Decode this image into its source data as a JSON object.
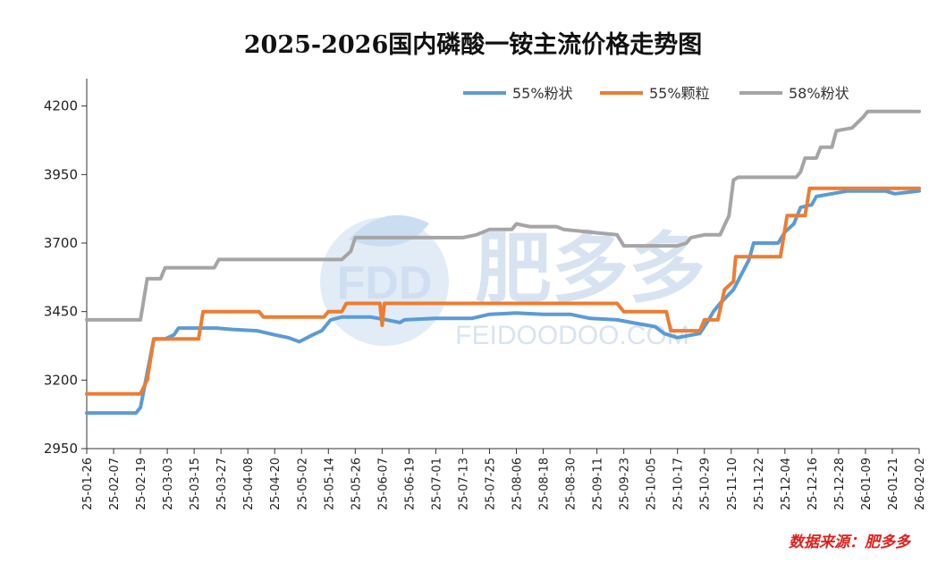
{
  "title": "2025-2026国内磷酸一铵主流价格走势图",
  "source": "数据来源：肥多多",
  "watermark": {
    "logo": "FDD",
    "name": "肥多多",
    "url": "FEIDOODOO.COM"
  },
  "colors": {
    "series1": "#5b9bd5",
    "series2": "#ed7d31",
    "series3": "#a5a5a5",
    "source": "#e0201c"
  },
  "chart_data": {
    "type": "line",
    "title": "2025-2026国内磷酸一铵主流价格走势图",
    "ylim": [
      2950,
      4300
    ],
    "yticks": [
      2950,
      3200,
      3450,
      3700,
      3950,
      4200
    ],
    "x_dates": [
      "25-01-26",
      "25-02-07",
      "25-02-19",
      "25-03-03",
      "25-03-15",
      "25-03-27",
      "25-04-08",
      "25-04-20",
      "25-05-02",
      "25-05-14",
      "25-05-26",
      "25-06-07",
      "25-06-19",
      "25-07-01",
      "25-07-13",
      "25-07-25",
      "25-08-06",
      "25-08-18",
      "25-08-30",
      "25-09-11",
      "25-09-23",
      "25-10-05",
      "25-10-17",
      "25-10-29",
      "25-11-10",
      "25-11-22",
      "25-12-04",
      "25-12-16",
      "25-12-28",
      "26-01-09",
      "26-01-21",
      "26-02-02"
    ],
    "legend_position": "top-right",
    "grid": false,
    "series": [
      {
        "name": "55%粉状",
        "color": "#5b9bd5",
        "points": [
          [
            "25-01-26",
            3080
          ],
          [
            "25-02-17",
            3080
          ],
          [
            "25-02-19",
            3100
          ],
          [
            "25-02-24",
            3310
          ],
          [
            "25-02-25",
            3350
          ],
          [
            "25-03-02",
            3350
          ],
          [
            "25-03-06",
            3365
          ],
          [
            "25-03-08",
            3390
          ],
          [
            "25-03-25",
            3390
          ],
          [
            "25-04-01",
            3385
          ],
          [
            "25-04-12",
            3380
          ],
          [
            "25-04-20",
            3365
          ],
          [
            "25-04-26",
            3355
          ],
          [
            "25-05-01",
            3340
          ],
          [
            "25-05-07",
            3365
          ],
          [
            "25-05-11",
            3380
          ],
          [
            "25-05-15",
            3420
          ],
          [
            "25-05-20",
            3430
          ],
          [
            "25-06-02",
            3430
          ],
          [
            "25-06-09",
            3420
          ],
          [
            "25-06-15",
            3410
          ],
          [
            "25-06-17",
            3420
          ],
          [
            "25-07-01",
            3425
          ],
          [
            "25-07-17",
            3425
          ],
          [
            "25-07-25",
            3440
          ],
          [
            "25-08-06",
            3445
          ],
          [
            "25-08-18",
            3440
          ],
          [
            "25-08-30",
            3440
          ],
          [
            "25-09-08",
            3425
          ],
          [
            "25-09-20",
            3420
          ],
          [
            "25-09-30",
            3405
          ],
          [
            "25-10-07",
            3395
          ],
          [
            "25-10-11",
            3370
          ],
          [
            "25-10-17",
            3355
          ],
          [
            "25-10-27",
            3370
          ],
          [
            "25-10-31",
            3420
          ],
          [
            "25-11-02",
            3450
          ],
          [
            "25-11-05",
            3480
          ],
          [
            "25-11-11",
            3530
          ],
          [
            "25-11-18",
            3640
          ],
          [
            "25-11-20",
            3700
          ],
          [
            "25-12-01",
            3700
          ],
          [
            "25-12-04",
            3740
          ],
          [
            "25-12-08",
            3770
          ],
          [
            "25-12-11",
            3830
          ],
          [
            "25-12-16",
            3840
          ],
          [
            "25-12-18",
            3870
          ],
          [
            "25-12-25",
            3880
          ],
          [
            "26-01-01",
            3890
          ],
          [
            "26-01-18",
            3890
          ],
          [
            "26-01-22",
            3880
          ],
          [
            "26-02-02",
            3890
          ]
        ]
      },
      {
        "name": "55%颗粒",
        "color": "#ed7d31",
        "points": [
          [
            "25-01-26",
            3150
          ],
          [
            "25-02-19",
            3150
          ],
          [
            "25-02-22",
            3200
          ],
          [
            "25-02-25",
            3350
          ],
          [
            "25-03-17",
            3350
          ],
          [
            "25-03-19",
            3450
          ],
          [
            "25-04-13",
            3450
          ],
          [
            "25-04-15",
            3430
          ],
          [
            "25-05-12",
            3430
          ],
          [
            "25-05-14",
            3450
          ],
          [
            "25-05-20",
            3450
          ],
          [
            "25-05-22",
            3480
          ],
          [
            "25-06-06",
            3480
          ],
          [
            "25-06-07",
            3400
          ],
          [
            "25-06-08",
            3480
          ],
          [
            "25-09-20",
            3480
          ],
          [
            "25-09-23",
            3450
          ],
          [
            "25-10-12",
            3450
          ],
          [
            "25-10-14",
            3380
          ],
          [
            "25-10-27",
            3380
          ],
          [
            "25-10-29",
            3420
          ],
          [
            "25-11-04",
            3420
          ],
          [
            "25-11-07",
            3530
          ],
          [
            "25-11-11",
            3560
          ],
          [
            "25-11-12",
            3650
          ],
          [
            "25-12-02",
            3650
          ],
          [
            "25-12-05",
            3800
          ],
          [
            "25-12-13",
            3800
          ],
          [
            "25-12-15",
            3900
          ],
          [
            "26-02-02",
            3900
          ]
        ]
      },
      {
        "name": "58%粉状",
        "color": "#a5a5a5",
        "points": [
          [
            "25-01-26",
            3420
          ],
          [
            "25-02-19",
            3420
          ],
          [
            "25-02-22",
            3570
          ],
          [
            "25-02-28",
            3570
          ],
          [
            "25-03-02",
            3610
          ],
          [
            "25-03-24",
            3610
          ],
          [
            "25-03-26",
            3640
          ],
          [
            "25-05-20",
            3640
          ],
          [
            "25-05-24",
            3670
          ],
          [
            "25-05-26",
            3720
          ],
          [
            "25-07-13",
            3720
          ],
          [
            "25-07-19",
            3730
          ],
          [
            "25-07-25",
            3750
          ],
          [
            "25-08-04",
            3750
          ],
          [
            "25-08-06",
            3770
          ],
          [
            "25-08-12",
            3760
          ],
          [
            "25-08-24",
            3760
          ],
          [
            "25-08-27",
            3750
          ],
          [
            "25-09-20",
            3730
          ],
          [
            "25-09-23",
            3690
          ],
          [
            "25-10-17",
            3690
          ],
          [
            "25-10-21",
            3700
          ],
          [
            "25-10-23",
            3720
          ],
          [
            "25-10-29",
            3730
          ],
          [
            "25-11-05",
            3730
          ],
          [
            "25-11-09",
            3800
          ],
          [
            "25-11-11",
            3930
          ],
          [
            "25-11-13",
            3940
          ],
          [
            "25-12-09",
            3940
          ],
          [
            "25-12-11",
            3960
          ],
          [
            "25-12-13",
            4010
          ],
          [
            "25-12-18",
            4010
          ],
          [
            "25-12-20",
            4050
          ],
          [
            "25-12-25",
            4050
          ],
          [
            "25-12-27",
            4110
          ],
          [
            "26-01-03",
            4120
          ],
          [
            "26-01-08",
            4160
          ],
          [
            "26-01-10",
            4180
          ],
          [
            "26-02-02",
            4180
          ]
        ]
      }
    ]
  }
}
